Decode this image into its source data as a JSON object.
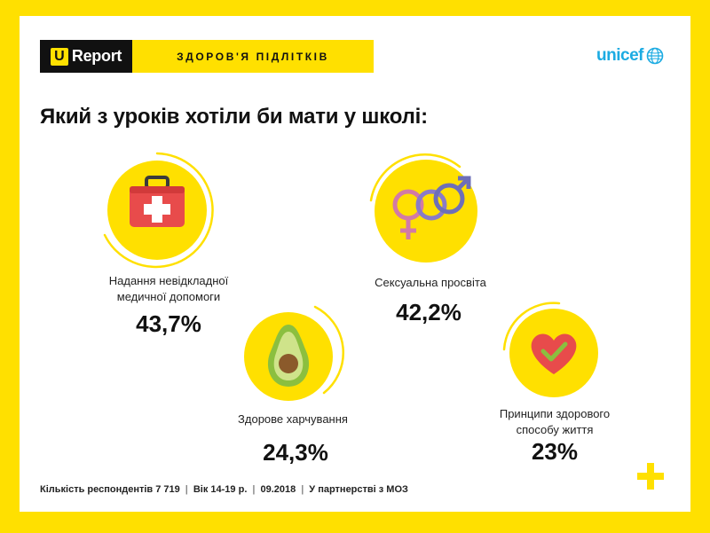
{
  "header": {
    "logo_letter": "U",
    "logo_text": "Report",
    "topic": "ЗДОРОВ'Я ПІДЛІТКІВ",
    "partner_logo_text": "unicef"
  },
  "question": "Який з уроків хотіли би мати у школі:",
  "chart_data": {
    "type": "bar",
    "categories": [
      "Надання невідкладної медичної допомоги",
      "Сексуальна просвіта",
      "Здорове харчування",
      "Принципи здорового способу життя"
    ],
    "values": [
      43.7,
      42.2,
      24.3,
      23
    ],
    "unit": "%"
  },
  "items": [
    {
      "label_line1": "Надання невідкладної",
      "label_line2": "медичної допомоги",
      "value": "43,7%",
      "icon": "first-aid-kit-icon"
    },
    {
      "label_line1": "Сексуальна просвіта",
      "label_line2": "",
      "value": "42,2%",
      "icon": "gender-symbols-icon"
    },
    {
      "label_line1": "Здорове харчування",
      "label_line2": "",
      "value": "24,3%",
      "icon": "avocado-icon"
    },
    {
      "label_line1": "Принципи здорового",
      "label_line2": "способу життя",
      "value": "23%",
      "icon": "heart-check-icon"
    }
  ],
  "footer": {
    "respondents": "Кількість респондентів 7 719",
    "age": "Вік 14-19 р.",
    "date": "09.2018",
    "partnership": "У партнерстві з МОЗ"
  },
  "colors": {
    "accent": "#FFE000",
    "dark": "#111111",
    "unicef_blue": "#1CABE2"
  }
}
